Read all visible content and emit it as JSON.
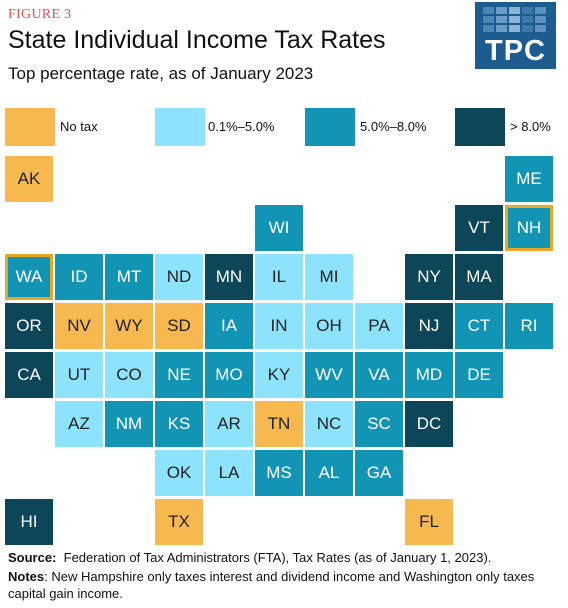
{
  "figure_label": "FIGURE 3",
  "title": "State Individual Income Tax Rates",
  "subtitle": "Top percentage rate, as of January 2023",
  "logo": {
    "text": "TPC"
  },
  "legend": [
    {
      "label": "No tax",
      "color": "#f7b84f",
      "category": "none"
    },
    {
      "label": "0.1%–5.0%",
      "color": "#8de3fc",
      "category": "low"
    },
    {
      "label": "5.0%–8.0%",
      "color": "#1294b5",
      "category": "mid"
    },
    {
      "label": "> 8.0%",
      "color": "#0c4658",
      "category": "high"
    }
  ],
  "states": [
    {
      "abbr": "AK",
      "category": "none"
    },
    {
      "abbr": "ME",
      "category": "mid"
    },
    {
      "abbr": "WI",
      "category": "mid"
    },
    {
      "abbr": "VT",
      "category": "high"
    },
    {
      "abbr": "NH",
      "category": "mid",
      "highlighted": true
    },
    {
      "abbr": "WA",
      "category": "mid",
      "highlighted": true
    },
    {
      "abbr": "ID",
      "category": "mid"
    },
    {
      "abbr": "MT",
      "category": "mid"
    },
    {
      "abbr": "ND",
      "category": "low"
    },
    {
      "abbr": "MN",
      "category": "high"
    },
    {
      "abbr": "IL",
      "category": "low"
    },
    {
      "abbr": "MI",
      "category": "low"
    },
    {
      "abbr": "NY",
      "category": "high"
    },
    {
      "abbr": "MA",
      "category": "high"
    },
    {
      "abbr": "OR",
      "category": "high"
    },
    {
      "abbr": "NV",
      "category": "none"
    },
    {
      "abbr": "WY",
      "category": "none"
    },
    {
      "abbr": "SD",
      "category": "none"
    },
    {
      "abbr": "IA",
      "category": "mid"
    },
    {
      "abbr": "IN",
      "category": "low"
    },
    {
      "abbr": "OH",
      "category": "low"
    },
    {
      "abbr": "PA",
      "category": "low"
    },
    {
      "abbr": "NJ",
      "category": "high"
    },
    {
      "abbr": "CT",
      "category": "mid"
    },
    {
      "abbr": "RI",
      "category": "mid"
    },
    {
      "abbr": "CA",
      "category": "high"
    },
    {
      "abbr": "UT",
      "category": "low"
    },
    {
      "abbr": "CO",
      "category": "low"
    },
    {
      "abbr": "NE",
      "category": "mid"
    },
    {
      "abbr": "MO",
      "category": "mid"
    },
    {
      "abbr": "KY",
      "category": "low"
    },
    {
      "abbr": "WV",
      "category": "mid"
    },
    {
      "abbr": "VA",
      "category": "mid"
    },
    {
      "abbr": "MD",
      "category": "mid"
    },
    {
      "abbr": "DE",
      "category": "mid"
    },
    {
      "abbr": "AZ",
      "category": "low"
    },
    {
      "abbr": "NM",
      "category": "mid"
    },
    {
      "abbr": "KS",
      "category": "mid"
    },
    {
      "abbr": "AR",
      "category": "low"
    },
    {
      "abbr": "TN",
      "category": "none"
    },
    {
      "abbr": "NC",
      "category": "low"
    },
    {
      "abbr": "SC",
      "category": "mid"
    },
    {
      "abbr": "DC",
      "category": "high"
    },
    {
      "abbr": "OK",
      "category": "low"
    },
    {
      "abbr": "LA",
      "category": "low"
    },
    {
      "abbr": "MS",
      "category": "mid"
    },
    {
      "abbr": "AL",
      "category": "mid"
    },
    {
      "abbr": "GA",
      "category": "mid"
    },
    {
      "abbr": "HI",
      "category": "high"
    },
    {
      "abbr": "TX",
      "category": "none"
    },
    {
      "abbr": "FL",
      "category": "none"
    }
  ],
  "footer": {
    "source_label": "Source:",
    "source_text": "Federation of Tax Administrators (FTA), Tax Rates (as of January 1, 2023).",
    "notes_label": "Notes",
    "notes_text": ": New Hampshire only taxes interest and dividend income and Washington only taxes capital gain income."
  }
}
